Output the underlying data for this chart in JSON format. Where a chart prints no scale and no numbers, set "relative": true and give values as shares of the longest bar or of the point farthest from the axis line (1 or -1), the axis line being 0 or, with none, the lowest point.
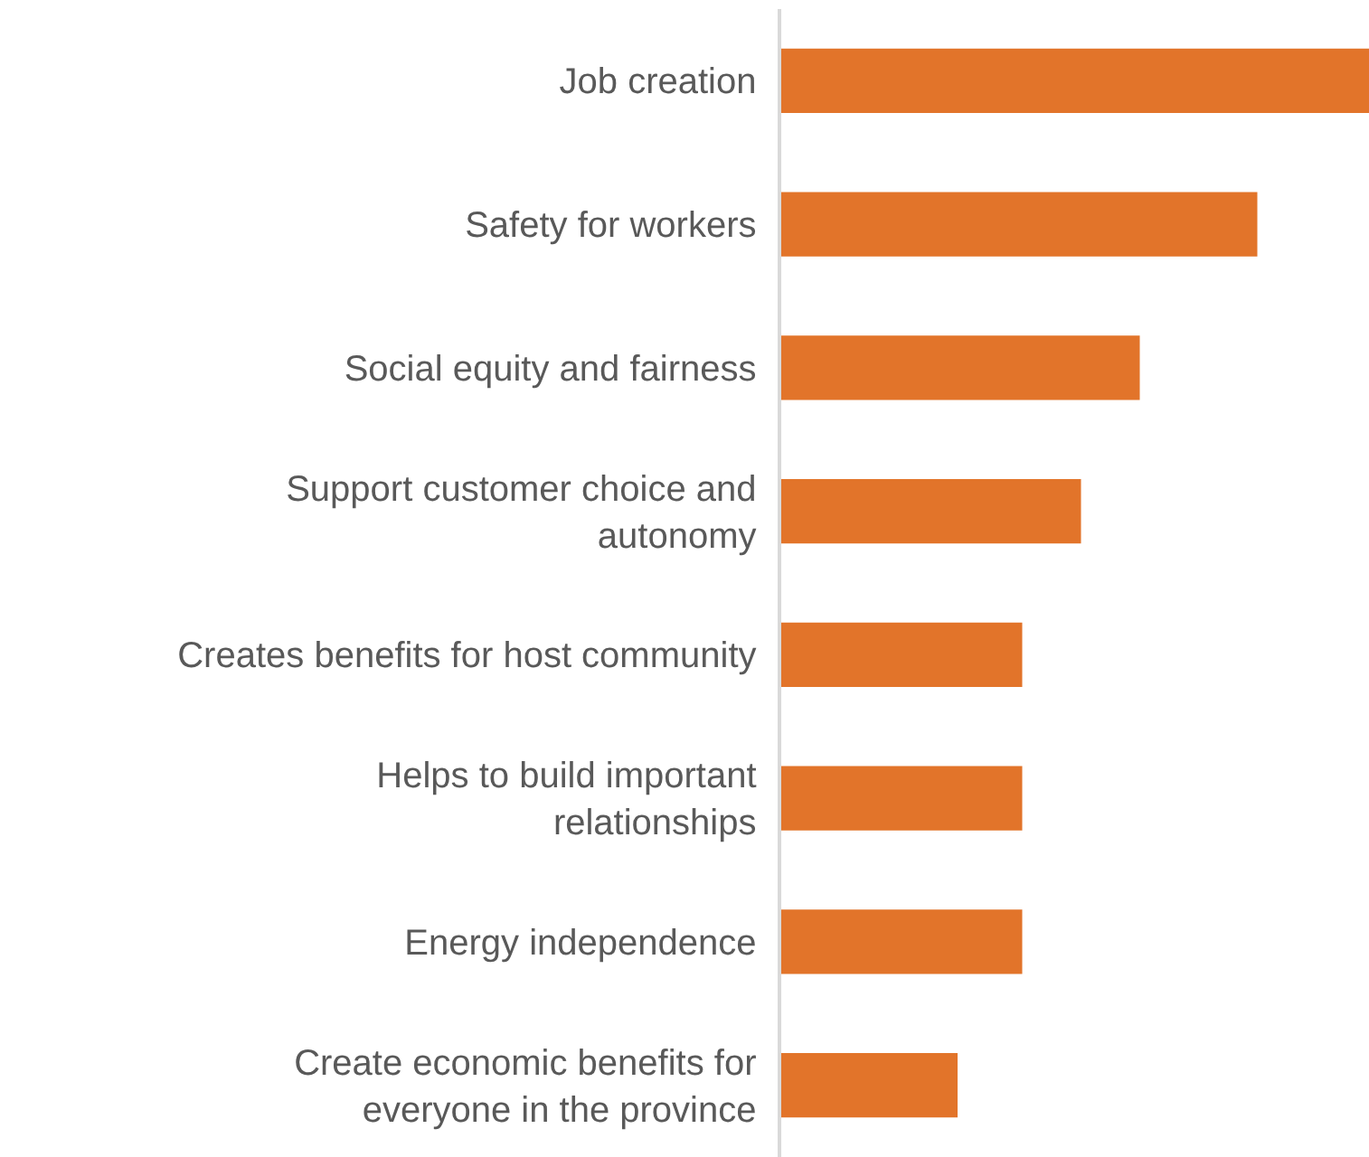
{
  "chart_data": {
    "type": "bar",
    "orientation": "horizontal",
    "relative": true,
    "categories": [
      "Job creation",
      "Safety for workers",
      "Social equity and fairness",
      "Support customer choice and autonomy",
      "Creates benefits for host community",
      "Helps to build important relationships",
      "Energy independence",
      "Create economic benefits for everyone in the province"
    ],
    "values": [
      1,
      0.81,
      0.61,
      0.51,
      0.41,
      0.41,
      0.41,
      0.3
    ],
    "color": "#e2742a",
    "legend": false
  }
}
